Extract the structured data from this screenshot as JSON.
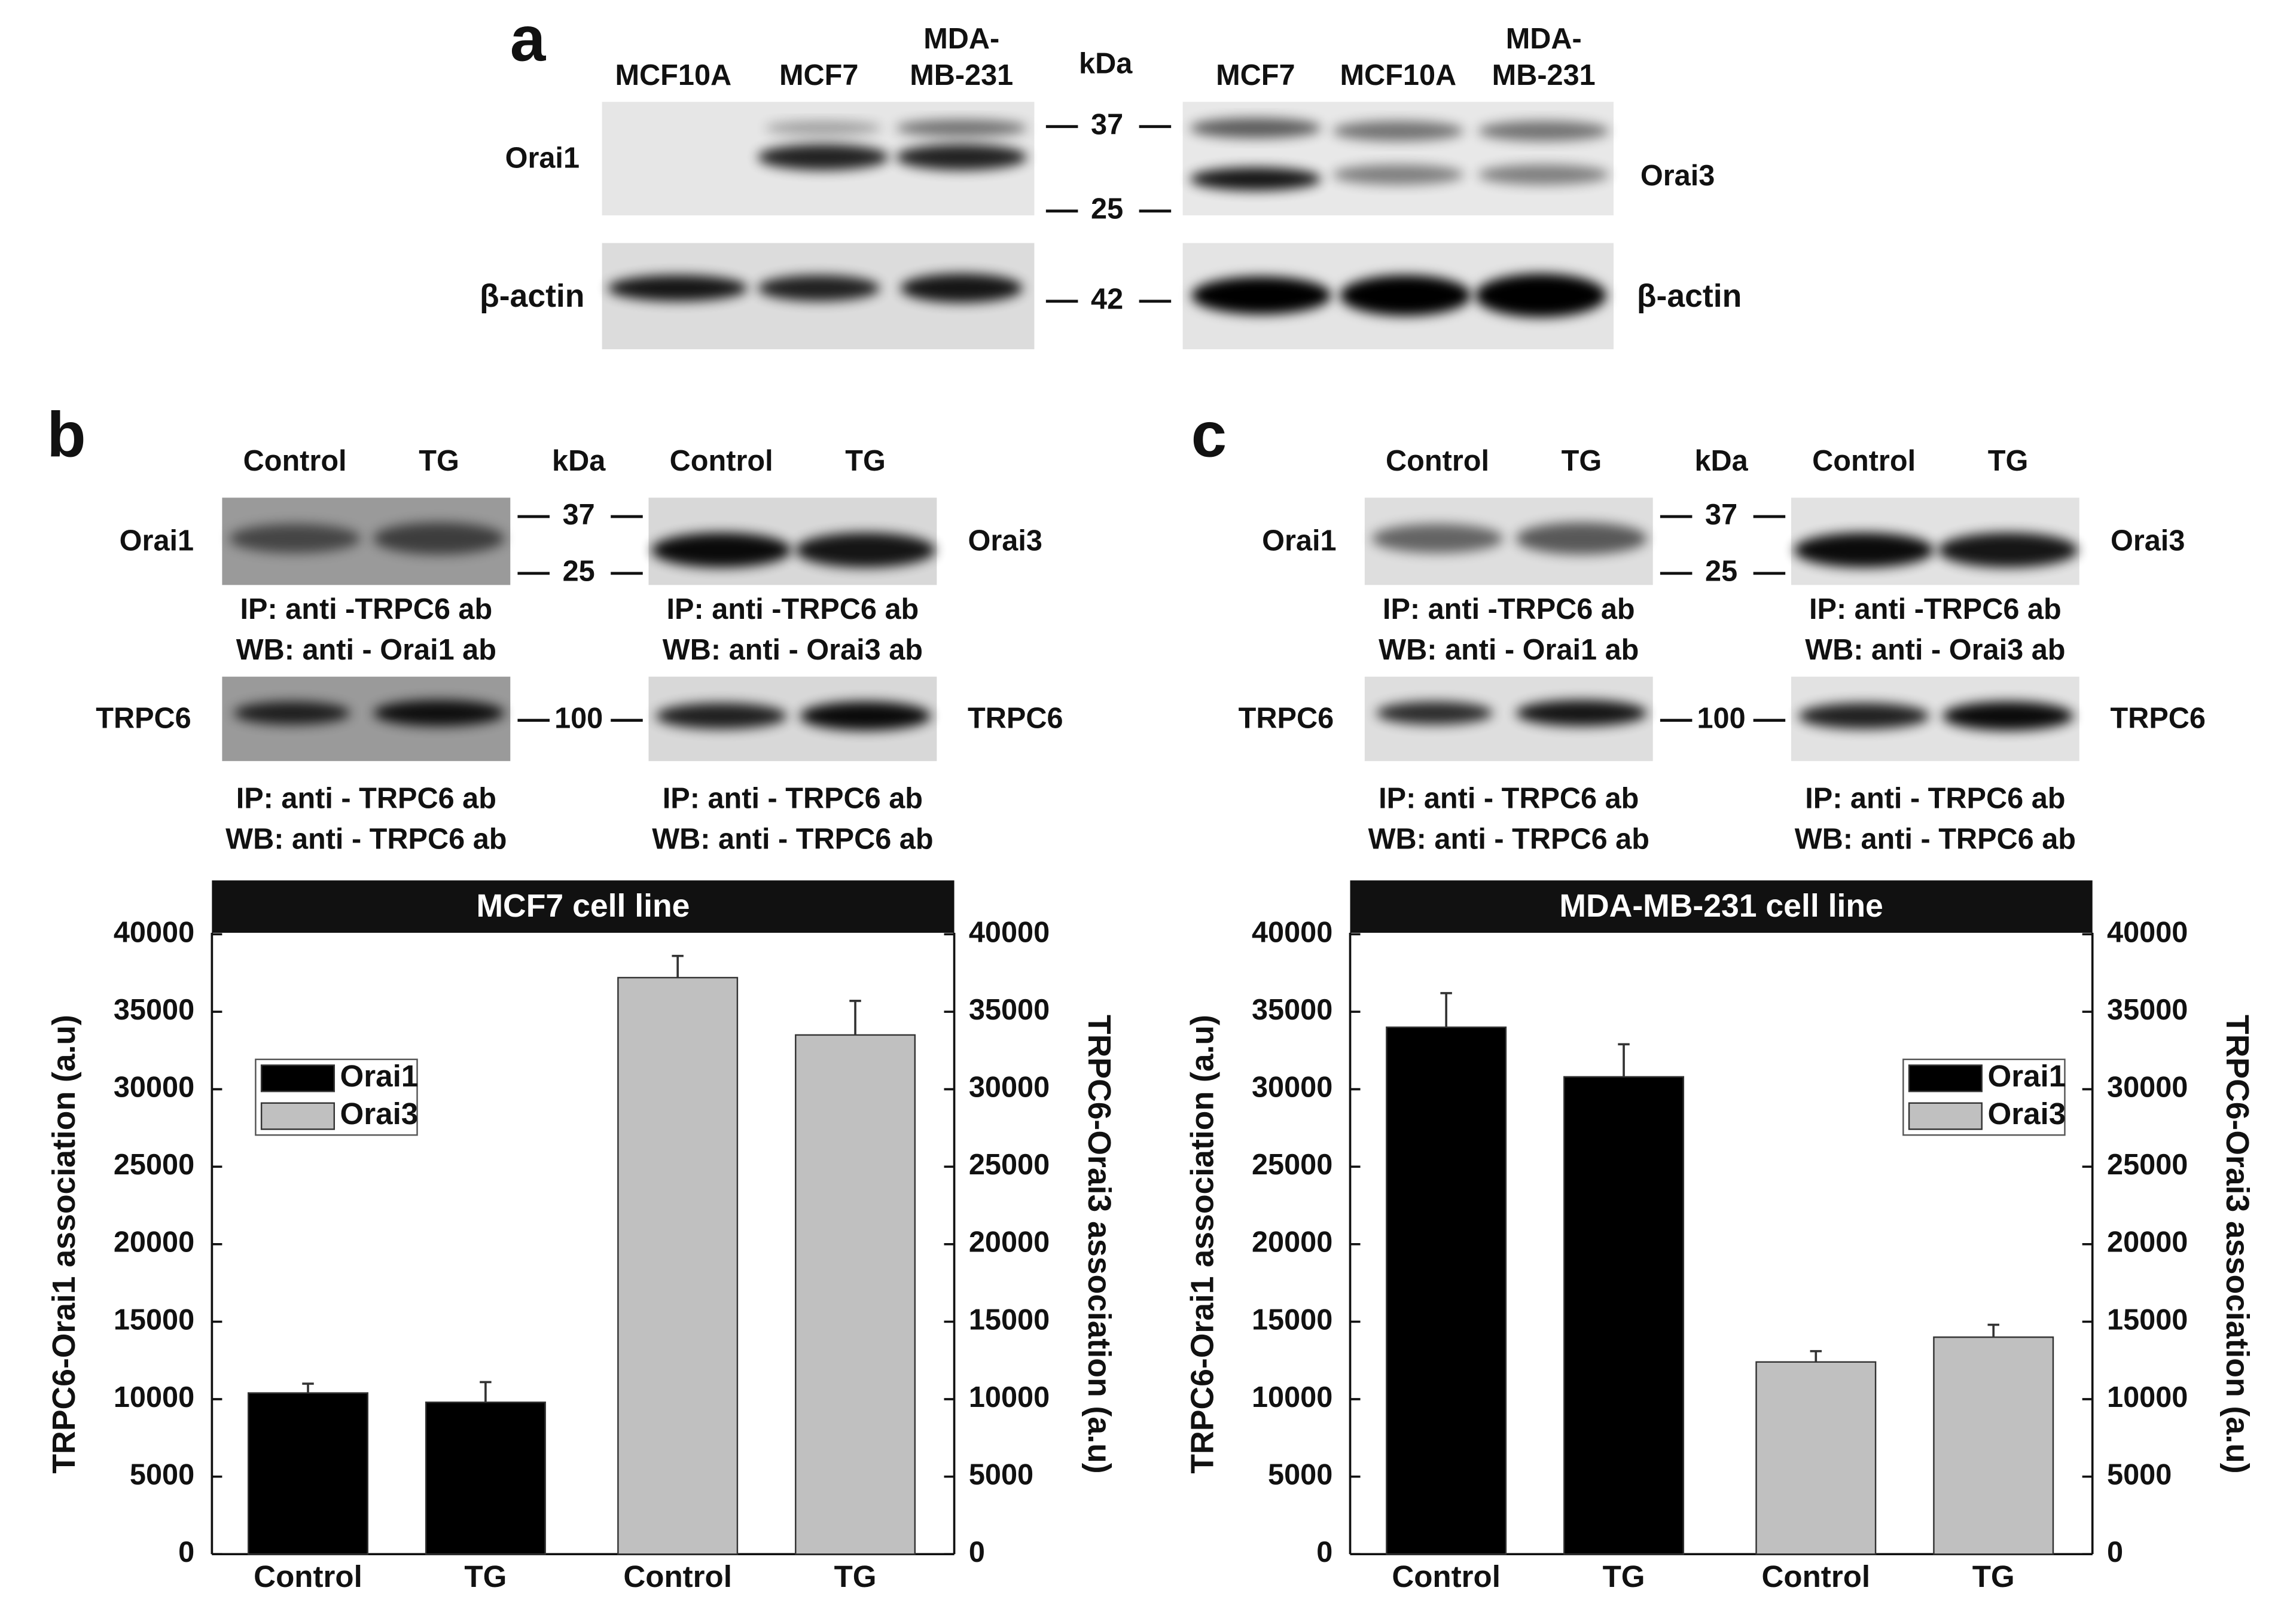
{
  "panel_a": {
    "label": "a",
    "lanes_left": [
      [
        "MCF10A"
      ],
      [
        "MCF7"
      ],
      [
        "MDA-",
        "MB-231"
      ]
    ],
    "lanes_right": [
      [
        "MCF7"
      ],
      [
        "MCF10A"
      ],
      [
        "MDA-",
        "MB-231"
      ]
    ],
    "kda": "kDa",
    "markers": [
      37,
      25,
      42
    ],
    "rows": {
      "orai1": "Orai1",
      "actin_left": "β-actin",
      "orai3": "Orai3",
      "actin_right": "β-actin"
    }
  },
  "panel_b": {
    "label": "b",
    "columns": [
      "Control",
      "TG",
      "kDa",
      "Control",
      "TG"
    ],
    "markers": [
      37,
      25,
      100
    ],
    "left_labels": [
      "Orai1",
      "TRPC6"
    ],
    "right_labels": [
      "Orai3",
      "TRPC6"
    ],
    "captions": [
      [
        "IP: anti -TRPC6 ab",
        "WB: anti - Orai1 ab"
      ],
      [
        "IP: anti -TRPC6 ab",
        "WB: anti - Orai3 ab"
      ],
      [
        "IP: anti - TRPC6 ab",
        "WB: anti - TRPC6 ab"
      ],
      [
        "IP: anti - TRPC6 ab",
        "WB: anti - TRPC6 ab"
      ]
    ]
  },
  "panel_c": {
    "label": "c",
    "columns": [
      "Control",
      "TG",
      "kDa",
      "Control",
      "TG"
    ],
    "markers": [
      37,
      25,
      100
    ],
    "left_labels": [
      "Orai1",
      "TRPC6"
    ],
    "right_labels": [
      "Orai3",
      "TRPC6"
    ],
    "captions": [
      [
        "IP: anti -TRPC6 ab",
        "WB: anti - Orai1 ab"
      ],
      [
        "IP: anti -TRPC6 ab",
        "WB: anti - Orai3 ab"
      ],
      [
        "IP: anti - TRPC6 ab",
        "WB: anti - TRPC6 ab"
      ],
      [
        "IP: anti - TRPC6 ab",
        "WB: anti - TRPC6 ab"
      ]
    ]
  },
  "chart_data": [
    {
      "type": "bar",
      "title": "MCF7 cell line",
      "ylabel": "TRPC6-Orai1 association (a.u)",
      "y2label": "TRPC6-Orai3 association (a.u)",
      "categories": [
        "Control",
        "TG",
        "Control",
        "TG"
      ],
      "series": [
        {
          "name": "Orai1",
          "color": "#000000",
          "axis": "y",
          "values": [
            10400,
            9800,
            null,
            null
          ],
          "errors": [
            600,
            1300,
            null,
            null
          ]
        },
        {
          "name": "Orai3",
          "color": "#c0c0c0",
          "axis": "y2",
          "values": [
            null,
            null,
            37200,
            33500
          ],
          "errors": [
            null,
            null,
            1400,
            2200
          ]
        }
      ],
      "ylim": [
        0,
        40000
      ],
      "yticks": [
        0,
        5000,
        10000,
        15000,
        20000,
        25000,
        30000,
        35000,
        40000
      ],
      "y2lim": [
        0,
        40000
      ],
      "y2ticks": [
        0,
        5000,
        10000,
        15000,
        20000,
        25000,
        30000,
        35000,
        40000
      ],
      "legend": "upper left"
    },
    {
      "type": "bar",
      "title": "MDA-MB-231 cell line",
      "ylabel": "TRPC6-Orai1 association (a.u)",
      "y2label": "TRPC6-Orai3 association (a.u)",
      "categories": [
        "Control",
        "TG",
        "Control",
        "TG"
      ],
      "series": [
        {
          "name": "Orai1",
          "color": "#000000",
          "axis": "y",
          "values": [
            34000,
            30800,
            null,
            null
          ],
          "errors": [
            2200,
            2100,
            null,
            null
          ]
        },
        {
          "name": "Orai3",
          "color": "#c0c0c0",
          "axis": "y2",
          "values": [
            null,
            null,
            12400,
            14000
          ],
          "errors": [
            null,
            null,
            700,
            800
          ]
        }
      ],
      "ylim": [
        0,
        40000
      ],
      "yticks": [
        0,
        5000,
        10000,
        15000,
        20000,
        25000,
        30000,
        35000,
        40000
      ],
      "y2lim": [
        0,
        40000
      ],
      "y2ticks": [
        0,
        5000,
        10000,
        15000,
        20000,
        25000,
        30000,
        35000,
        40000
      ],
      "legend": "upper right"
    }
  ]
}
